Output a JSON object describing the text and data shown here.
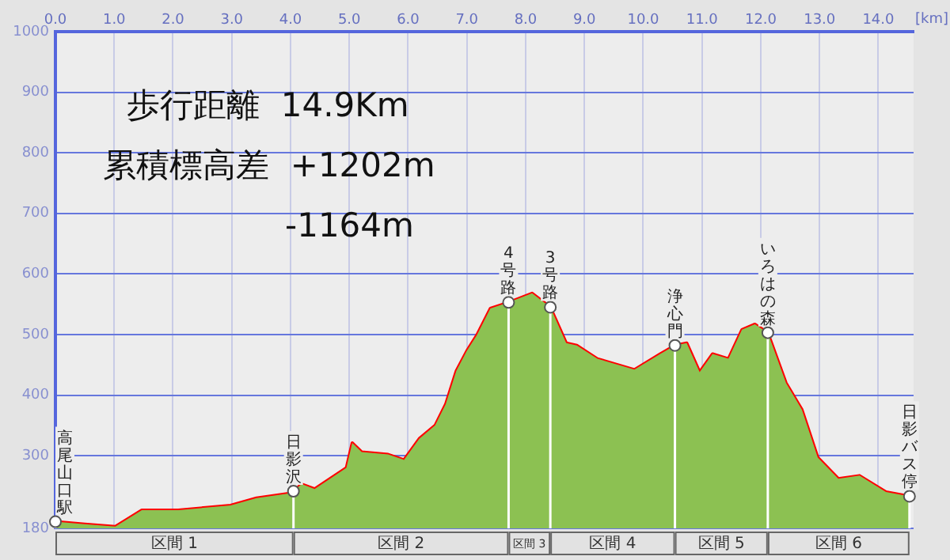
{
  "chart_data": {
    "type": "area",
    "xlabel": "[km]",
    "x": [
      0,
      0.5,
      1.02,
      1.47,
      2.09,
      2.98,
      3.42,
      4.01,
      4.19,
      4.41,
      4.95,
      5.05,
      5.21,
      5.66,
      5.93,
      6.19,
      6.46,
      6.64,
      6.82,
      7.0,
      7.17,
      7.4,
      7.71,
      8.11,
      8.42,
      8.69,
      8.87,
      9.22,
      9.85,
      10.29,
      10.54,
      10.74,
      10.96,
      11.18,
      11.45,
      11.68,
      11.9,
      12.12,
      12.43,
      12.7,
      12.97,
      13.32,
      13.68,
      14.13,
      14.53
    ],
    "series": [
      {
        "color": "#8cc152",
        "values": [
          191,
          187,
          183,
          210,
          210,
          218,
          230,
          238,
          253,
          245,
          280,
          321,
          306,
          302,
          293,
          328,
          350,
          385,
          440,
          473,
          499,
          543,
          553,
          568,
          545,
          486,
          482,
          460,
          442,
          468,
          482,
          486,
          438,
          468,
          460,
          508,
          517,
          503,
          420,
          376,
          297,
          262,
          267,
          240,
          233
        ]
      },
      {
        "type": "line",
        "color": "#ff0000",
        "values": [
          191,
          187,
          183,
          210,
          210,
          218,
          230,
          238,
          253,
          245,
          280,
          321,
          306,
          302,
          293,
          328,
          350,
          385,
          440,
          473,
          499,
          543,
          553,
          568,
          545,
          486,
          482,
          460,
          442,
          468,
          482,
          486,
          438,
          468,
          460,
          508,
          517,
          503,
          420,
          376,
          297,
          262,
          267,
          240,
          233
        ]
      }
    ],
    "xlim": [
      0,
      14.6
    ],
    "ylim": [
      180,
      1000
    ],
    "xticks": [
      {
        "value": 0,
        "label": "0.0"
      },
      {
        "value": 1,
        "label": "1.0"
      },
      {
        "value": 2,
        "label": "2.0"
      },
      {
        "value": 3,
        "label": "3.0"
      },
      {
        "value": 4,
        "label": "4.0"
      },
      {
        "value": 5,
        "label": "5.0"
      },
      {
        "value": 6,
        "label": "6.0"
      },
      {
        "value": 7,
        "label": "7.0"
      },
      {
        "value": 8,
        "label": "8.0"
      },
      {
        "value": 9,
        "label": "9.0"
      },
      {
        "value": 10,
        "label": "10.0"
      },
      {
        "value": 11,
        "label": "11.0"
      },
      {
        "value": 12,
        "label": "12.0"
      },
      {
        "value": 13,
        "label": "13.0"
      },
      {
        "value": 14,
        "label": "14.0"
      }
    ],
    "yticks": [
      180,
      300,
      400,
      500,
      600,
      700,
      800,
      900,
      1000
    ],
    "grid": true,
    "legend": false,
    "marker": "none",
    "annotations": [
      "歩行距離  14.9Km",
      "累積標高差  +1202m",
      "-1164m",
      "区間 1",
      "区間 2",
      "区間 3",
      "区間 4",
      "区間 5",
      "区間 6"
    ],
    "ref_lines": [
      {
        "axis": "x",
        "value": 0,
        "label": "高尾山口駅",
        "color": "#ffffff"
      },
      {
        "axis": "x",
        "value": 4.05,
        "label": "日影沢",
        "color": "#ffffff"
      },
      {
        "axis": "x",
        "value": 7.71,
        "label": "4号路",
        "color": "#ffffff"
      },
      {
        "axis": "x",
        "value": 8.42,
        "label": "3号路",
        "color": "#ffffff"
      },
      {
        "axis": "x",
        "value": 10.54,
        "label": "浄心門",
        "color": "#ffffff"
      },
      {
        "axis": "x",
        "value": 12.12,
        "label": "いろはの森",
        "color": "#ffffff"
      },
      {
        "axis": "x",
        "value": 14.53,
        "label": "日影バス停",
        "color": "#ffffff"
      }
    ]
  }
}
